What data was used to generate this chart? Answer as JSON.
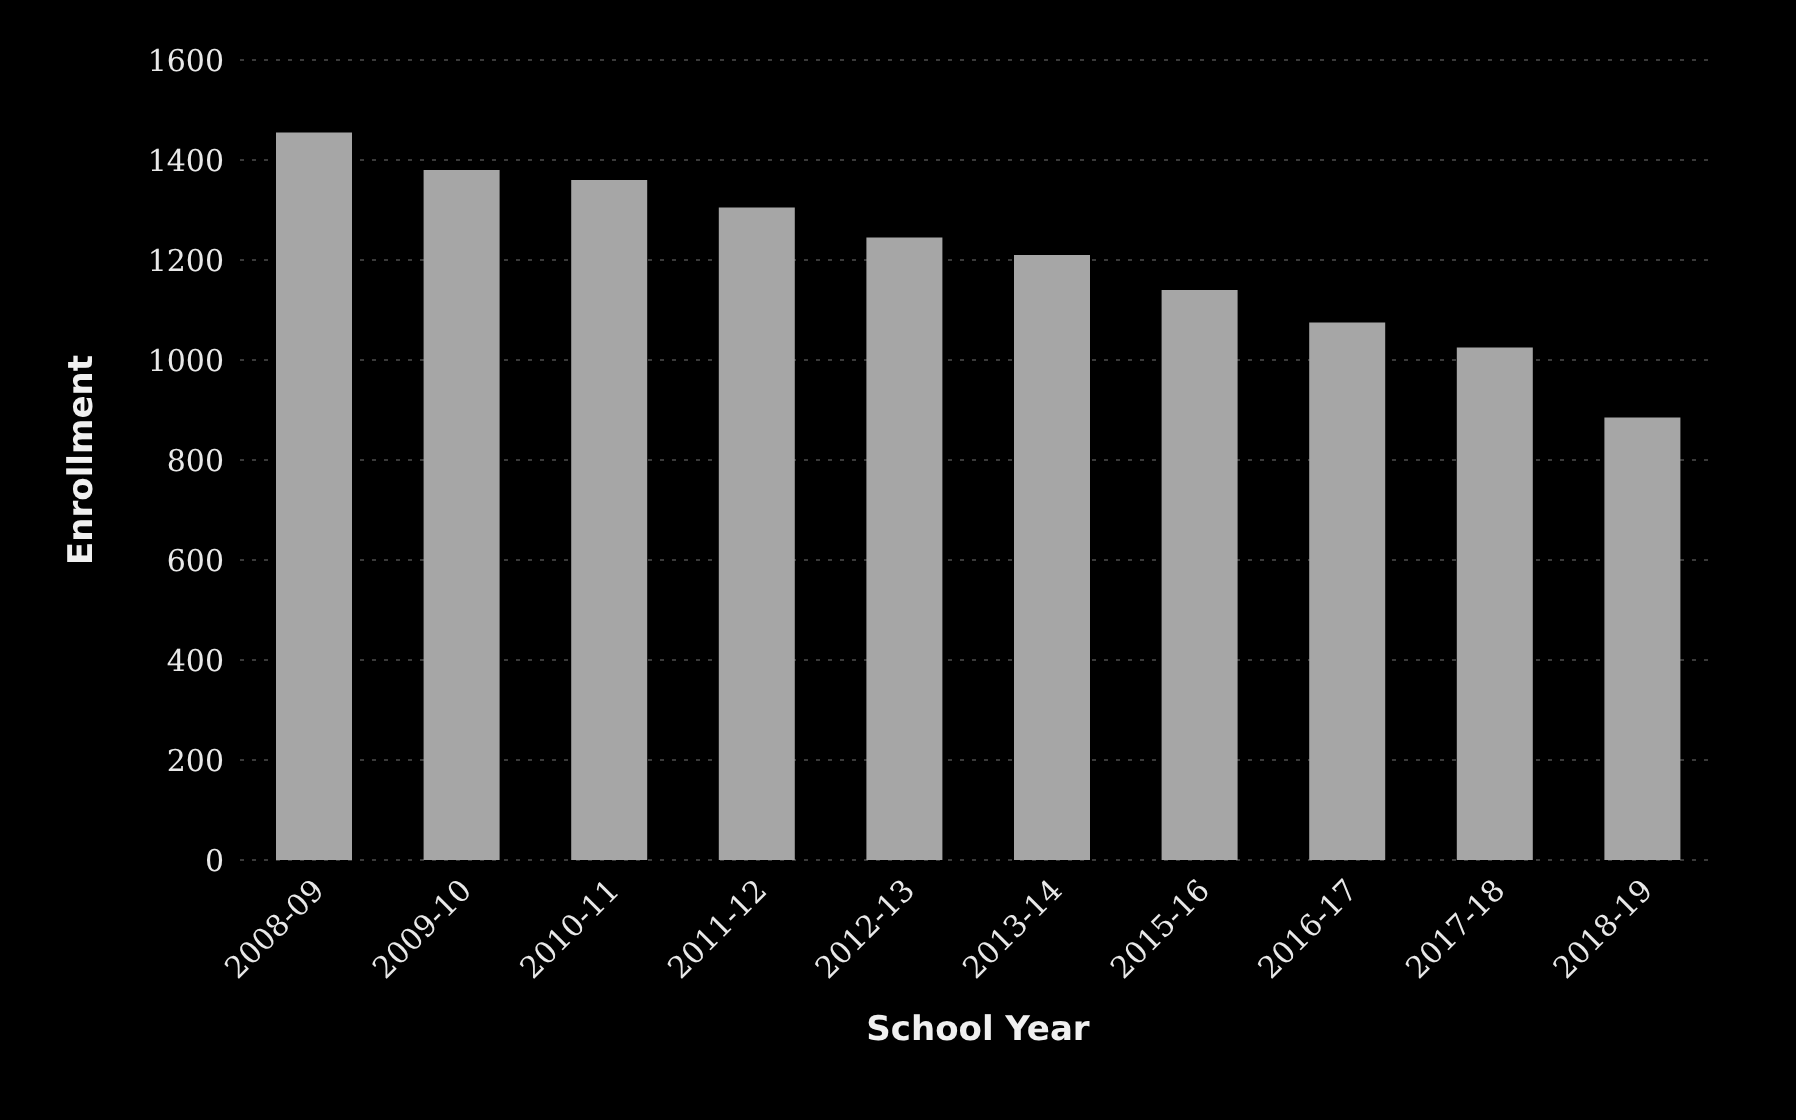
{
  "chart_data": {
    "type": "bar",
    "xlabel": "School Year",
    "ylabel": "Enrollment",
    "categories": [
      "2008-09",
      "2009-10",
      "2010-11",
      "2011-12",
      "2012-13",
      "2013-14",
      "2015-16",
      "2016-17",
      "2017-18",
      "2018-19"
    ],
    "values": [
      1455,
      1380,
      1360,
      1305,
      1245,
      1210,
      1140,
      1075,
      1025,
      885
    ],
    "color": "#a6a6a6",
    "ylim": [
      0,
      1600
    ],
    "yticks": [
      0,
      200,
      400,
      600,
      800,
      1000,
      1200,
      1400,
      1600
    ],
    "grid": "y"
  }
}
